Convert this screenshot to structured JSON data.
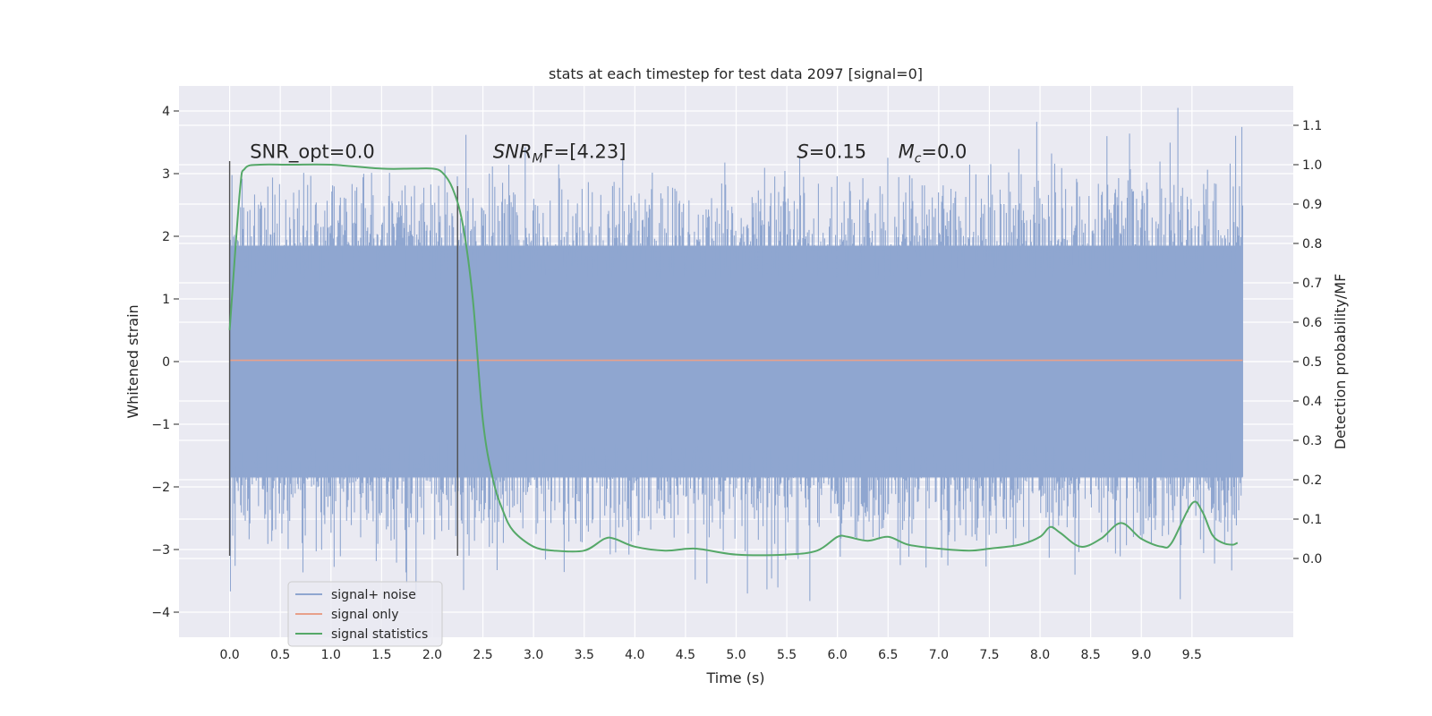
{
  "chart_data": {
    "type": "line",
    "title": "stats at each timestep for test data 2097 [signal=0]",
    "xlabel": "Time (s)",
    "ylabel_left": "Whitened strain",
    "ylabel_right": "Detection probability/MF",
    "xlim": [
      -0.5,
      10.5
    ],
    "ylim_left": [
      -4.4,
      4.4
    ],
    "ylim_right": [
      -0.2,
      1.2
    ],
    "x_ticks": [
      0.0,
      0.5,
      1.0,
      1.5,
      2.0,
      2.5,
      3.0,
      3.5,
      4.0,
      4.5,
      5.0,
      5.5,
      6.0,
      6.5,
      7.0,
      7.5,
      8.0,
      8.5,
      9.0,
      9.5
    ],
    "x_tick_labels": [
      "0.0",
      "0.5",
      "1.0",
      "1.5",
      "2.0",
      "2.5",
      "3.0",
      "3.5",
      "4.0",
      "4.5",
      "5.0",
      "5.5",
      "6.0",
      "6.5",
      "7.0",
      "7.5",
      "8.0",
      "8.5",
      "9.0",
      "9.5"
    ],
    "y_left_ticks": [
      -4,
      -3,
      -2,
      -1,
      0,
      1,
      2,
      3,
      4
    ],
    "y_left_tick_labels": [
      "−4",
      "−3",
      "−2",
      "−1",
      "0",
      "1",
      "2",
      "3",
      "4"
    ],
    "y_right_ticks": [
      0.0,
      0.1,
      0.2,
      0.3,
      0.4,
      0.5,
      0.6,
      0.7,
      0.8,
      0.9,
      1.0,
      1.1
    ],
    "y_right_tick_labels": [
      "0.0",
      "0.1",
      "0.2",
      "0.3",
      "0.4",
      "0.5",
      "0.6",
      "0.7",
      "0.8",
      "0.9",
      "1.0",
      "1.1"
    ],
    "grid": true,
    "legend_position": "lower-left",
    "annotations": [
      {
        "text": "SNR_opt=0.0",
        "x": 0.2,
        "y": 3.25
      },
      {
        "text_main": "SNR",
        "text_sub": "M",
        "text_rest": "F=[4.23]",
        "x": 2.6,
        "y": 3.25
      },
      {
        "text_main": "S",
        "text_rest": "=0.15",
        "x": 5.6,
        "y": 3.25
      },
      {
        "text_main": "M",
        "text_sub": "c",
        "text_rest": "=0.0",
        "x": 6.6,
        "y": 3.25
      }
    ],
    "vertical_markers": [
      {
        "x": 0.0,
        "y_range": [
          -3.1,
          3.2
        ]
      },
      {
        "x": 2.25,
        "y_range": [
          -3.1,
          2.8
        ]
      }
    ],
    "series": [
      {
        "name": "signal+ noise",
        "axis": "left",
        "color": "#8fa6d0",
        "style": "noise",
        "x_range": [
          0.0,
          10.0
        ],
        "core_band": [
          -1.85,
          1.85
        ],
        "extreme_range": [
          -3.9,
          4.05
        ]
      },
      {
        "name": "signal only",
        "axis": "left",
        "color": "#e8a08a",
        "x": [
          0.0,
          10.0
        ],
        "values": [
          0.02,
          0.02
        ]
      },
      {
        "name": "signal statistics",
        "axis": "right",
        "color": "#55a868",
        "x": [
          0.0,
          0.1,
          0.15,
          0.3,
          0.6,
          1.0,
          1.5,
          1.8,
          2.0,
          2.1,
          2.2,
          2.3,
          2.4,
          2.5,
          2.6,
          2.7,
          2.8,
          3.0,
          3.2,
          3.5,
          3.7,
          3.8,
          4.0,
          4.3,
          4.6,
          5.0,
          5.5,
          5.8,
          6.0,
          6.1,
          6.3,
          6.5,
          6.7,
          7.0,
          7.3,
          7.5,
          7.8,
          8.0,
          8.1,
          8.2,
          8.4,
          8.6,
          8.8,
          9.0,
          9.2,
          9.3,
          9.5,
          9.6,
          9.7,
          9.8,
          9.9,
          9.95
        ],
        "values": [
          0.58,
          0.93,
          0.99,
          1.0,
          1.0,
          1.0,
          0.99,
          0.99,
          0.99,
          0.98,
          0.94,
          0.85,
          0.66,
          0.35,
          0.2,
          0.12,
          0.07,
          0.03,
          0.02,
          0.02,
          0.05,
          0.05,
          0.03,
          0.02,
          0.025,
          0.01,
          0.01,
          0.02,
          0.055,
          0.055,
          0.045,
          0.055,
          0.035,
          0.025,
          0.02,
          0.025,
          0.035,
          0.055,
          0.08,
          0.065,
          0.03,
          0.05,
          0.09,
          0.05,
          0.03,
          0.04,
          0.14,
          0.12,
          0.06,
          0.04,
          0.035,
          0.04
        ]
      }
    ]
  }
}
